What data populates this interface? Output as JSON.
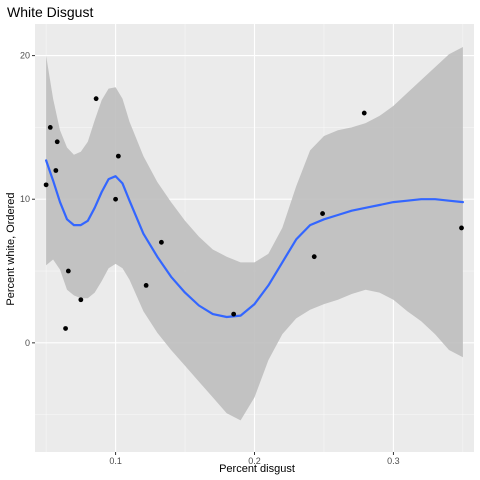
{
  "chart_data": {
    "type": "scatter",
    "title": "White Disgust",
    "xlabel": "Percent disgust",
    "ylabel": "Percent white, Ordered",
    "xlim": [
      0.042,
      0.358
    ],
    "ylim": [
      -7.6,
      22.2
    ],
    "x_ticks": [
      0.1,
      0.2,
      0.3
    ],
    "x_tick_labels": [
      "0.1",
      "0.2",
      "0.3"
    ],
    "y_ticks": [
      0,
      10,
      20
    ],
    "y_tick_labels": [
      "0",
      "10",
      "20"
    ],
    "grid": true,
    "legend": "none",
    "points": [
      {
        "x": 0.05,
        "y": 11
      },
      {
        "x": 0.053,
        "y": 15
      },
      {
        "x": 0.057,
        "y": 12
      },
      {
        "x": 0.058,
        "y": 14
      },
      {
        "x": 0.064,
        "y": 1
      },
      {
        "x": 0.066,
        "y": 5
      },
      {
        "x": 0.075,
        "y": 3
      },
      {
        "x": 0.086,
        "y": 17
      },
      {
        "x": 0.1,
        "y": 10
      },
      {
        "x": 0.102,
        "y": 13
      },
      {
        "x": 0.122,
        "y": 4
      },
      {
        "x": 0.133,
        "y": 7
      },
      {
        "x": 0.185,
        "y": 2
      },
      {
        "x": 0.243,
        "y": 6
      },
      {
        "x": 0.249,
        "y": 9
      },
      {
        "x": 0.279,
        "y": 16
      },
      {
        "x": 0.349,
        "y": 8
      }
    ],
    "smooth": {
      "method": "loess",
      "line": [
        {
          "x": 0.05,
          "y": 12.7
        },
        {
          "x": 0.055,
          "y": 11.3
        },
        {
          "x": 0.06,
          "y": 9.8
        },
        {
          "x": 0.065,
          "y": 8.6
        },
        {
          "x": 0.07,
          "y": 8.2
        },
        {
          "x": 0.075,
          "y": 8.2
        },
        {
          "x": 0.08,
          "y": 8.5
        },
        {
          "x": 0.085,
          "y": 9.4
        },
        {
          "x": 0.09,
          "y": 10.5
        },
        {
          "x": 0.095,
          "y": 11.4
        },
        {
          "x": 0.1,
          "y": 11.6
        },
        {
          "x": 0.105,
          "y": 11.1
        },
        {
          "x": 0.11,
          "y": 9.9
        },
        {
          "x": 0.12,
          "y": 7.6
        },
        {
          "x": 0.13,
          "y": 6.0
        },
        {
          "x": 0.14,
          "y": 4.6
        },
        {
          "x": 0.15,
          "y": 3.5
        },
        {
          "x": 0.16,
          "y": 2.6
        },
        {
          "x": 0.17,
          "y": 2.0
        },
        {
          "x": 0.18,
          "y": 1.8
        },
        {
          "x": 0.19,
          "y": 1.9
        },
        {
          "x": 0.2,
          "y": 2.7
        },
        {
          "x": 0.21,
          "y": 4.0
        },
        {
          "x": 0.22,
          "y": 5.6
        },
        {
          "x": 0.23,
          "y": 7.2
        },
        {
          "x": 0.24,
          "y": 8.2
        },
        {
          "x": 0.25,
          "y": 8.6
        },
        {
          "x": 0.26,
          "y": 8.9
        },
        {
          "x": 0.27,
          "y": 9.2
        },
        {
          "x": 0.28,
          "y": 9.4
        },
        {
          "x": 0.29,
          "y": 9.6
        },
        {
          "x": 0.3,
          "y": 9.8
        },
        {
          "x": 0.31,
          "y": 9.9
        },
        {
          "x": 0.32,
          "y": 10.0
        },
        {
          "x": 0.33,
          "y": 10.0
        },
        {
          "x": 0.34,
          "y": 9.9
        },
        {
          "x": 0.35,
          "y": 9.8
        }
      ],
      "band_upper": [
        {
          "x": 0.05,
          "y": 20.0
        },
        {
          "x": 0.055,
          "y": 17.0
        },
        {
          "x": 0.06,
          "y": 14.8
        },
        {
          "x": 0.065,
          "y": 13.6
        },
        {
          "x": 0.07,
          "y": 13.1
        },
        {
          "x": 0.075,
          "y": 13.3
        },
        {
          "x": 0.08,
          "y": 14.0
        },
        {
          "x": 0.085,
          "y": 15.5
        },
        {
          "x": 0.09,
          "y": 16.9
        },
        {
          "x": 0.095,
          "y": 17.7
        },
        {
          "x": 0.1,
          "y": 17.8
        },
        {
          "x": 0.105,
          "y": 17.0
        },
        {
          "x": 0.11,
          "y": 15.4
        },
        {
          "x": 0.12,
          "y": 13.0
        },
        {
          "x": 0.13,
          "y": 11.2
        },
        {
          "x": 0.14,
          "y": 9.8
        },
        {
          "x": 0.15,
          "y": 8.5
        },
        {
          "x": 0.16,
          "y": 7.4
        },
        {
          "x": 0.17,
          "y": 6.5
        },
        {
          "x": 0.18,
          "y": 6.0
        },
        {
          "x": 0.19,
          "y": 5.6
        },
        {
          "x": 0.2,
          "y": 5.6
        },
        {
          "x": 0.21,
          "y": 6.2
        },
        {
          "x": 0.22,
          "y": 8.0
        },
        {
          "x": 0.23,
          "y": 10.9
        },
        {
          "x": 0.24,
          "y": 13.4
        },
        {
          "x": 0.25,
          "y": 14.4
        },
        {
          "x": 0.26,
          "y": 14.8
        },
        {
          "x": 0.27,
          "y": 15.0
        },
        {
          "x": 0.28,
          "y": 15.3
        },
        {
          "x": 0.29,
          "y": 15.8
        },
        {
          "x": 0.3,
          "y": 16.5
        },
        {
          "x": 0.31,
          "y": 17.4
        },
        {
          "x": 0.32,
          "y": 18.3
        },
        {
          "x": 0.33,
          "y": 19.2
        },
        {
          "x": 0.34,
          "y": 20.1
        },
        {
          "x": 0.35,
          "y": 20.6
        }
      ],
      "band_lower": [
        {
          "x": 0.05,
          "y": 5.4
        },
        {
          "x": 0.055,
          "y": 5.8
        },
        {
          "x": 0.06,
          "y": 5.1
        },
        {
          "x": 0.065,
          "y": 3.7
        },
        {
          "x": 0.07,
          "y": 3.3
        },
        {
          "x": 0.075,
          "y": 3.1
        },
        {
          "x": 0.08,
          "y": 3.1
        },
        {
          "x": 0.085,
          "y": 3.5
        },
        {
          "x": 0.09,
          "y": 4.3
        },
        {
          "x": 0.095,
          "y": 5.2
        },
        {
          "x": 0.1,
          "y": 5.5
        },
        {
          "x": 0.105,
          "y": 5.2
        },
        {
          "x": 0.11,
          "y": 4.4
        },
        {
          "x": 0.12,
          "y": 2.2
        },
        {
          "x": 0.13,
          "y": 0.7
        },
        {
          "x": 0.14,
          "y": -0.5
        },
        {
          "x": 0.15,
          "y": -1.6
        },
        {
          "x": 0.16,
          "y": -2.7
        },
        {
          "x": 0.17,
          "y": -3.8
        },
        {
          "x": 0.18,
          "y": -4.9
        },
        {
          "x": 0.19,
          "y": -5.4
        },
        {
          "x": 0.2,
          "y": -3.8
        },
        {
          "x": 0.21,
          "y": -1.2
        },
        {
          "x": 0.22,
          "y": 0.6
        },
        {
          "x": 0.23,
          "y": 1.7
        },
        {
          "x": 0.24,
          "y": 2.3
        },
        {
          "x": 0.25,
          "y": 2.7
        },
        {
          "x": 0.26,
          "y": 3.0
        },
        {
          "x": 0.27,
          "y": 3.4
        },
        {
          "x": 0.28,
          "y": 3.7
        },
        {
          "x": 0.29,
          "y": 3.5
        },
        {
          "x": 0.3,
          "y": 3.0
        },
        {
          "x": 0.31,
          "y": 2.2
        },
        {
          "x": 0.32,
          "y": 1.5
        },
        {
          "x": 0.33,
          "y": 0.6
        },
        {
          "x": 0.34,
          "y": -0.5
        },
        {
          "x": 0.35,
          "y": -1.0
        }
      ]
    },
    "colors": {
      "panel_background": "#ebebeb",
      "grid_major": "#ffffff",
      "band": "#bebebe",
      "line": "#3366ff",
      "point": "#000000"
    }
  }
}
